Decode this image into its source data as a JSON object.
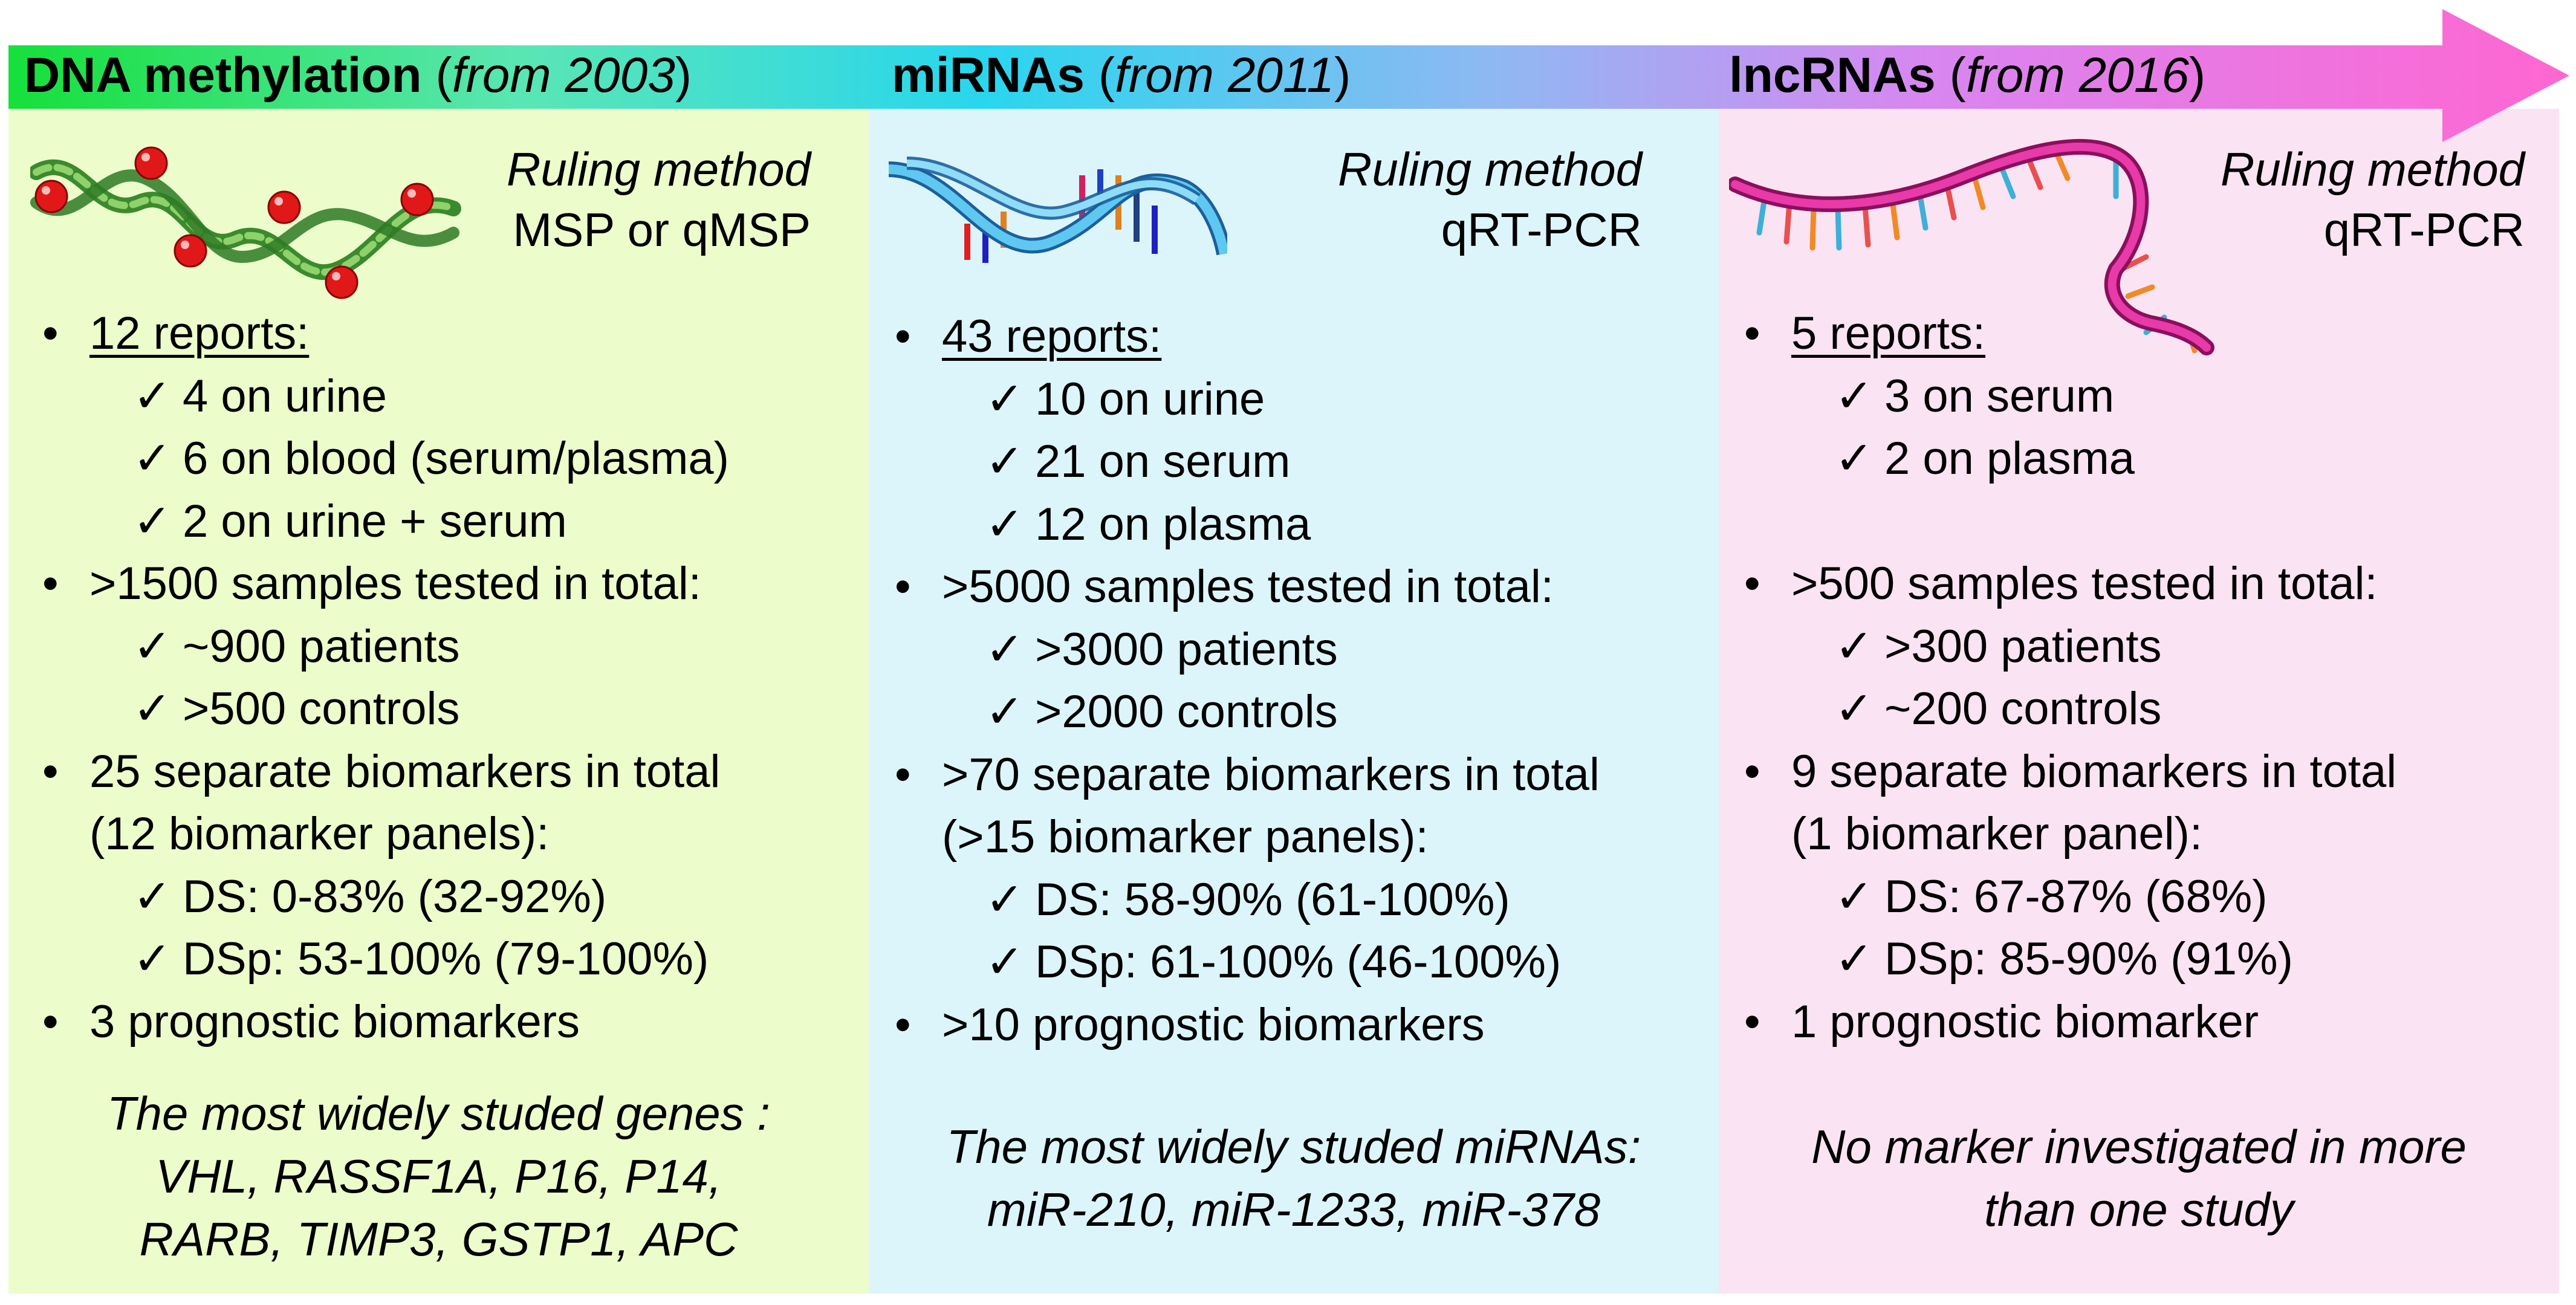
{
  "arrow": {
    "gradient": [
      "#16e03a",
      "#5ae6b4",
      "#29d6ee",
      "#8fb8f2",
      "#d886f0",
      "#ff66d1"
    ]
  },
  "columns": [
    {
      "id": "dna",
      "bg_color": "#ecfccb",
      "header": {
        "title": "DNA methylation",
        "open": " (",
        "years": "from 2003",
        "close": ")"
      },
      "ruling": {
        "label": "Ruling method",
        "method": "MSP or qMSP"
      },
      "icon": "dna-methylation-helix-icon",
      "reports": {
        "label": "12 reports:",
        "items": [
          "4 on urine",
          "6 on blood (serum/plasma)",
          "2 on urine + serum"
        ]
      },
      "samples": {
        "label": ">1500 samples tested in total:",
        "items": [
          "~900 patients",
          ">500 controls"
        ]
      },
      "biomarkers": {
        "label": "25 separate biomarkers in total",
        "panels": "(12 biomarker panels):",
        "items": [
          "DS: 0-83% (32-92%)",
          "DSp: 53-100% (79-100%)"
        ]
      },
      "prognostic": "3 prognostic biomarkers",
      "footer": [
        "The most widely studed genes :",
        "VHL, RASSF1A, P16, P14,",
        "RARB, TIMP3, GSTP1, APC"
      ]
    },
    {
      "id": "mirna",
      "bg_color": "#dcf5fb",
      "header": {
        "title": "miRNAs",
        "open": " (",
        "years": "from 2011",
        "close": ")"
      },
      "ruling": {
        "label": "Ruling method",
        "method": "qRT-PCR"
      },
      "icon": "mirna-helix-icon",
      "reports": {
        "label": "43 reports:",
        "items": [
          "10 on urine",
          "21 on serum",
          "12 on plasma"
        ]
      },
      "samples": {
        "label": ">5000 samples tested in total:",
        "items": [
          ">3000 patients",
          ">2000 controls"
        ]
      },
      "biomarkers": {
        "label": ">70 separate biomarkers in total",
        "panels": "(>15 biomarker panels):",
        "items": [
          "DS: 58-90% (61-100%)",
          "DSp: 61-100% (46-100%)"
        ]
      },
      "prognostic": ">10 prognostic biomarkers",
      "footer": [
        "The most widely studed miRNAs:",
        "miR-210, miR-1233, miR-378"
      ]
    },
    {
      "id": "lnc",
      "bg_color": "#fae3f2",
      "header": {
        "title": "lncRNAs",
        "open": " (",
        "years": "from 2016",
        "close": ")"
      },
      "ruling": {
        "label": "Ruling method",
        "method": "qRT-PCR"
      },
      "icon": "lncrna-strand-icon",
      "reports": {
        "label": "5 reports:",
        "items": [
          "3 on serum",
          "2 on plasma"
        ]
      },
      "samples": {
        "label": ">500 samples tested in total:",
        "items": [
          ">300 patients",
          "~200 controls"
        ]
      },
      "biomarkers": {
        "label": "9 separate biomarkers in total",
        "panels": "(1 biomarker panel):",
        "items": [
          "DS: 67-87% (68%)",
          "DSp: 85-90% (91%)"
        ]
      },
      "prognostic": "1 prognostic biomarker",
      "footer": [
        "No marker investigated in more",
        "than one study"
      ]
    }
  ],
  "symbols": {
    "bullet": "•",
    "check": "✓"
  }
}
